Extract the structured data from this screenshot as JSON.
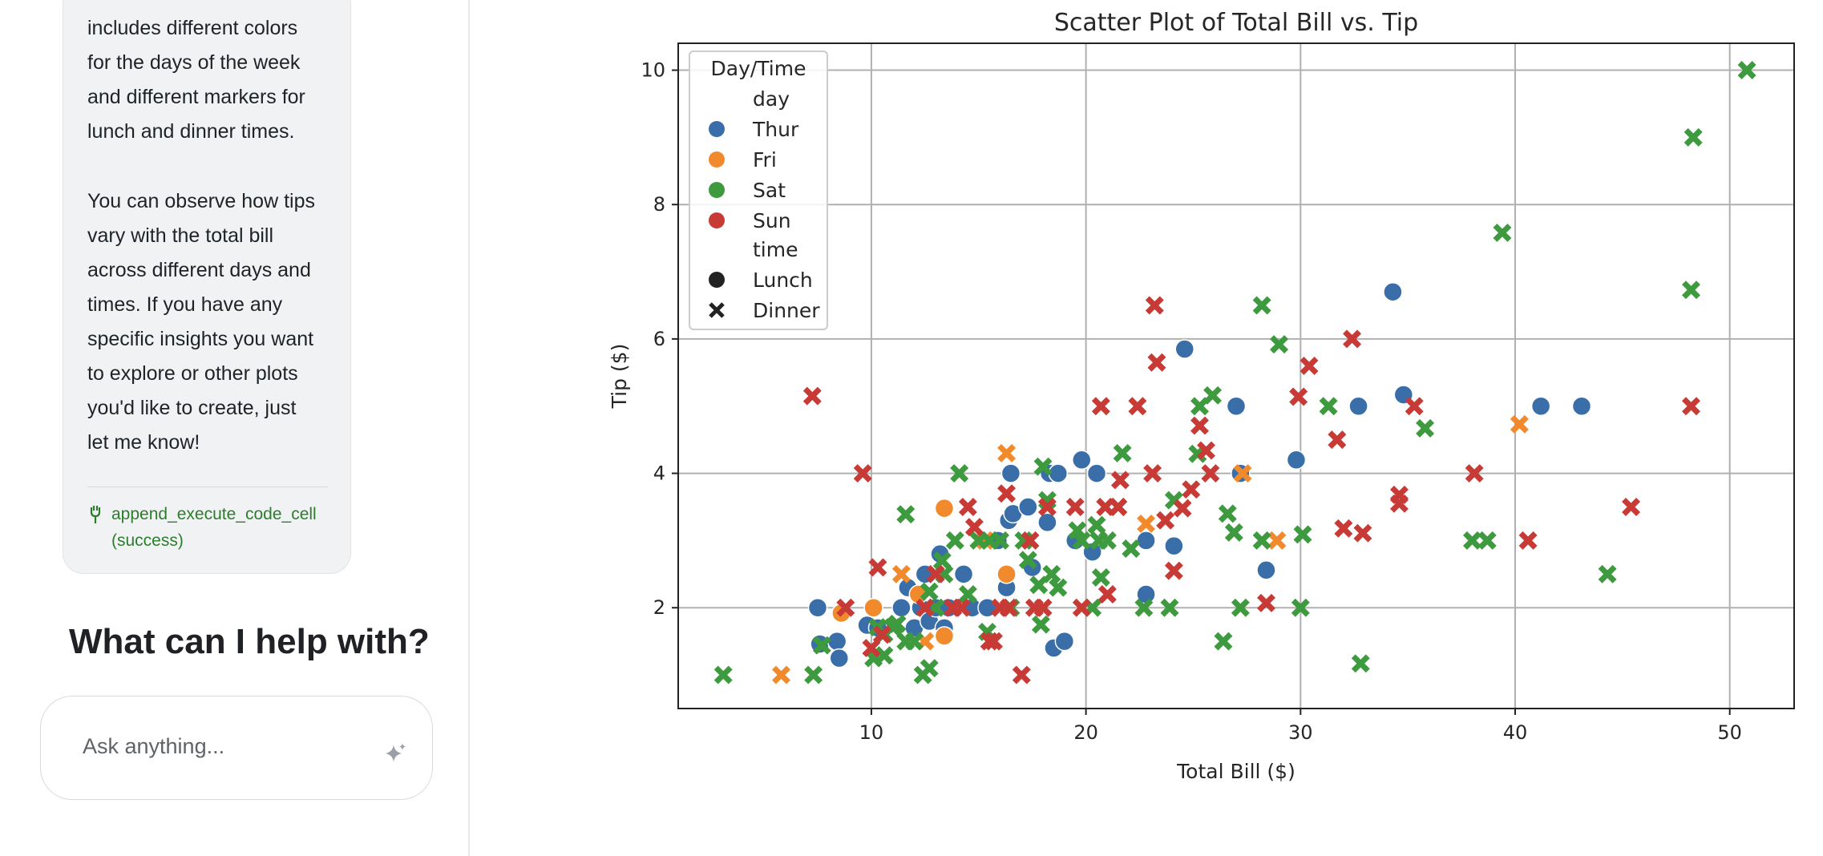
{
  "sidebar": {
    "message_lines_1": [
      "includes different colors",
      "for the days of the week",
      "and different markers for",
      "lunch and dinner times."
    ],
    "message_lines_2": [
      "You can observe how tips",
      "vary with the total bill",
      "across different days and",
      "times. If you have any",
      "specific insights you want",
      "to explore or other plots",
      "you'd like to create, just",
      "let me know!"
    ],
    "tool_call": {
      "name": "append_execute_code_cell",
      "status": "(success)"
    },
    "help_heading": "What can I help with?",
    "input_placeholder": "Ask anything...",
    "icons": {
      "tool": "tool-icon",
      "send": "sparkle-icon"
    }
  },
  "chart_data": {
    "type": "scatter",
    "title": "Scatter Plot of Total Bill vs. Tip",
    "xlabel": "Total Bill ($)",
    "ylabel": "Tip ($)",
    "xlim": [
      1,
      53
    ],
    "ylim": [
      0.5,
      10.4
    ],
    "xticks": [
      10,
      20,
      30,
      40,
      50
    ],
    "yticks": [
      2,
      4,
      6,
      8,
      10
    ],
    "grid": true,
    "legend": {
      "title": "Day/Time",
      "placement": "top-left",
      "hue_label": "day",
      "style_label": "time",
      "days": [
        {
          "name": "Thur",
          "color": "#3a6ea8"
        },
        {
          "name": "Fri",
          "color": "#f08a2c"
        },
        {
          "name": "Sat",
          "color": "#3e9a3e"
        },
        {
          "name": "Sun",
          "color": "#c83a35"
        }
      ],
      "times": [
        {
          "name": "Lunch",
          "marker": "circle"
        },
        {
          "name": "Dinner",
          "marker": "x"
        }
      ]
    },
    "series": [
      {
        "day": "Thur",
        "time": "Lunch",
        "points": [
          [
            7.5,
            2.0
          ],
          [
            7.6,
            1.46
          ],
          [
            8.4,
            1.5
          ],
          [
            8.5,
            1.25
          ],
          [
            9.8,
            1.74
          ],
          [
            10.1,
            2.0
          ],
          [
            10.3,
            1.7
          ],
          [
            11.4,
            2.0
          ],
          [
            11.7,
            2.3
          ],
          [
            12.0,
            1.7
          ],
          [
            12.3,
            2.0
          ],
          [
            12.5,
            2.5
          ],
          [
            12.7,
            1.8
          ],
          [
            13.0,
            2.0
          ],
          [
            13.2,
            2.8
          ],
          [
            13.4,
            1.7
          ],
          [
            13.6,
            2.0
          ],
          [
            14.3,
            2.5
          ],
          [
            14.7,
            2.0
          ],
          [
            15.4,
            2.0
          ],
          [
            15.9,
            3.0
          ],
          [
            16.3,
            2.3
          ],
          [
            16.4,
            3.3
          ],
          [
            16.5,
            4.0
          ],
          [
            16.6,
            3.4
          ],
          [
            17.3,
            3.5
          ],
          [
            17.5,
            2.6
          ],
          [
            18.2,
            3.27
          ],
          [
            18.3,
            4.0
          ],
          [
            18.7,
            4.0
          ],
          [
            18.5,
            1.4
          ],
          [
            19.0,
            1.5
          ],
          [
            19.5,
            3.0
          ],
          [
            19.8,
            4.2
          ],
          [
            20.3,
            2.83
          ],
          [
            20.5,
            4.0
          ],
          [
            22.8,
            2.2
          ],
          [
            22.8,
            3.0
          ],
          [
            24.1,
            2.92
          ],
          [
            24.6,
            5.85
          ],
          [
            27.0,
            5.0
          ],
          [
            27.2,
            4.0
          ],
          [
            28.4,
            2.56
          ],
          [
            29.8,
            4.2
          ],
          [
            32.7,
            5.0
          ],
          [
            34.3,
            6.7
          ],
          [
            34.8,
            5.17
          ],
          [
            41.2,
            5.0
          ],
          [
            43.1,
            5.0
          ]
        ]
      },
      {
        "day": "Fri",
        "time": "Lunch",
        "points": [
          [
            8.6,
            1.92
          ],
          [
            10.1,
            2.0
          ],
          [
            12.2,
            2.2
          ],
          [
            13.4,
            3.48
          ],
          [
            13.4,
            1.58
          ],
          [
            16.3,
            2.5
          ]
        ]
      },
      {
        "day": "Fri",
        "time": "Dinner",
        "points": [
          [
            5.8,
            1.0
          ],
          [
            11.4,
            2.5
          ],
          [
            12.5,
            1.5
          ],
          [
            15.3,
            3.0
          ],
          [
            16.3,
            4.3
          ],
          [
            22.8,
            3.25
          ],
          [
            27.3,
            4.0
          ],
          [
            28.9,
            3.0
          ],
          [
            40.2,
            4.73
          ]
        ]
      },
      {
        "day": "Sat",
        "time": "Dinner",
        "points": [
          [
            3.1,
            1.0
          ],
          [
            7.3,
            1.0
          ],
          [
            7.7,
            1.44
          ],
          [
            10.1,
            1.25
          ],
          [
            10.3,
            1.71
          ],
          [
            10.6,
            1.29
          ],
          [
            10.6,
            1.61
          ],
          [
            11.0,
            1.71
          ],
          [
            11.2,
            1.76
          ],
          [
            11.6,
            1.5
          ],
          [
            11.6,
            3.39
          ],
          [
            12.0,
            1.5
          ],
          [
            12.4,
            1.0
          ],
          [
            12.7,
            1.1
          ],
          [
            12.7,
            2.24
          ],
          [
            13.0,
            2.0
          ],
          [
            13.3,
            2.7
          ],
          [
            13.4,
            2.5
          ],
          [
            13.9,
            3.0
          ],
          [
            14.1,
            4.0
          ],
          [
            14.5,
            2.2
          ],
          [
            15.0,
            3.0
          ],
          [
            15.4,
            1.64
          ],
          [
            15.5,
            3.0
          ],
          [
            16.0,
            3.0
          ],
          [
            16.5,
            2.0
          ],
          [
            17.1,
            3.0
          ],
          [
            17.3,
            2.71
          ],
          [
            17.8,
            2.34
          ],
          [
            17.9,
            1.75
          ],
          [
            18.0,
            4.1
          ],
          [
            18.2,
            3.6
          ],
          [
            18.4,
            2.5
          ],
          [
            18.7,
            2.3
          ],
          [
            19.6,
            3.15
          ],
          [
            19.8,
            3.0
          ],
          [
            20.3,
            2.0
          ],
          [
            20.5,
            3.23
          ],
          [
            20.6,
            3.0
          ],
          [
            20.7,
            2.45
          ],
          [
            21.0,
            3.0
          ],
          [
            21.5,
            3.5
          ],
          [
            21.7,
            4.3
          ],
          [
            22.1,
            2.88
          ],
          [
            22.7,
            2.0
          ],
          [
            23.9,
            2.0
          ],
          [
            24.1,
            3.6
          ],
          [
            25.2,
            4.29
          ],
          [
            25.3,
            5.0
          ],
          [
            25.9,
            5.16
          ],
          [
            26.4,
            1.5
          ],
          [
            26.6,
            3.4
          ],
          [
            26.9,
            3.12
          ],
          [
            27.2,
            2.0
          ],
          [
            28.2,
            6.5
          ],
          [
            28.2,
            3.0
          ],
          [
            29.0,
            5.92
          ],
          [
            30.1,
            3.09
          ],
          [
            30.0,
            2.0
          ],
          [
            31.3,
            5.0
          ],
          [
            32.8,
            1.17
          ],
          [
            35.8,
            4.67
          ],
          [
            38.0,
            3.0
          ],
          [
            38.7,
            3.0
          ],
          [
            39.4,
            7.58
          ],
          [
            44.3,
            2.5
          ],
          [
            48.2,
            6.73
          ],
          [
            48.3,
            9.0
          ],
          [
            50.8,
            10.0
          ]
        ]
      },
      {
        "day": "Sun",
        "time": "Dinner",
        "points": [
          [
            7.25,
            5.15
          ],
          [
            8.8,
            2.0
          ],
          [
            9.6,
            4.0
          ],
          [
            10.0,
            1.4
          ],
          [
            10.3,
            2.6
          ],
          [
            10.5,
            1.6
          ],
          [
            12.5,
            2.0
          ],
          [
            13.0,
            2.5
          ],
          [
            13.8,
            2.0
          ],
          [
            14.2,
            2.0
          ],
          [
            14.5,
            3.5
          ],
          [
            14.8,
            3.2
          ],
          [
            15.5,
            1.5
          ],
          [
            15.7,
            1.5
          ],
          [
            16.0,
            2.0
          ],
          [
            16.3,
            3.7
          ],
          [
            16.4,
            2.0
          ],
          [
            17.0,
            1.0
          ],
          [
            17.4,
            3.0
          ],
          [
            17.6,
            2.0
          ],
          [
            18.0,
            2.0
          ],
          [
            18.2,
            3.5
          ],
          [
            19.5,
            3.5
          ],
          [
            19.8,
            2.0
          ],
          [
            20.7,
            5.0
          ],
          [
            20.9,
            3.5
          ],
          [
            21.0,
            2.2
          ],
          [
            21.5,
            3.5
          ],
          [
            21.6,
            3.9
          ],
          [
            22.4,
            5.0
          ],
          [
            23.1,
            4.0
          ],
          [
            23.2,
            6.5
          ],
          [
            23.3,
            5.65
          ],
          [
            23.7,
            3.3
          ],
          [
            24.1,
            2.55
          ],
          [
            24.5,
            3.48
          ],
          [
            24.9,
            3.76
          ],
          [
            25.3,
            4.71
          ],
          [
            25.6,
            4.34
          ],
          [
            25.8,
            4.0
          ],
          [
            28.4,
            2.07
          ],
          [
            29.9,
            5.14
          ],
          [
            30.4,
            5.6
          ],
          [
            31.7,
            4.5
          ],
          [
            32.0,
            3.18
          ],
          [
            32.4,
            6.0
          ],
          [
            32.9,
            3.11
          ],
          [
            34.6,
            3.68
          ],
          [
            34.6,
            3.55
          ],
          [
            35.3,
            5.0
          ],
          [
            38.1,
            4.0
          ],
          [
            40.6,
            3.0
          ],
          [
            45.4,
            3.5
          ],
          [
            48.2,
            5.0
          ]
        ]
      }
    ]
  }
}
